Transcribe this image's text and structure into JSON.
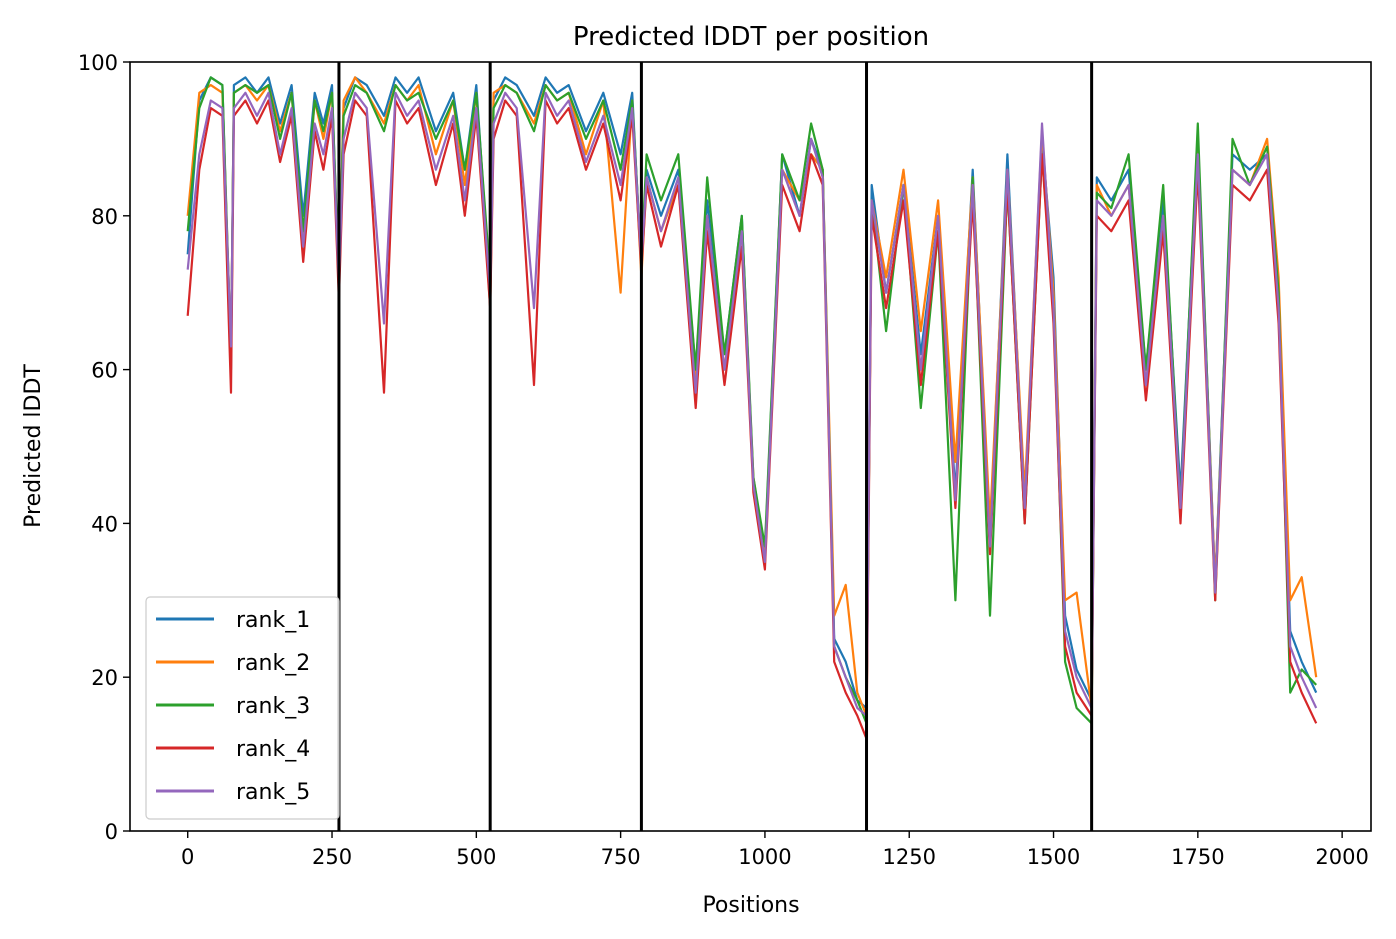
{
  "chart_data": {
    "type": "line",
    "title": "Predicted lDDT per position",
    "xlabel": "Positions",
    "ylabel": "Predicted lDDT",
    "xlim": [
      -100,
      2050
    ],
    "ylim": [
      0,
      100
    ],
    "xticks": [
      0,
      250,
      500,
      750,
      1000,
      1250,
      1500,
      1750,
      2000
    ],
    "yticks": [
      0,
      20,
      40,
      60,
      80,
      100
    ],
    "grid": false,
    "legend_position": "lower-left",
    "chain_boundaries": [
      262,
      524,
      786,
      1176,
      1566
    ],
    "boundary_color": "#000000",
    "series": [
      {
        "name": "rank_1",
        "color": "#1f77b4",
        "x": [
          0,
          20,
          40,
          60,
          75,
          80,
          100,
          120,
          140,
          160,
          180,
          200,
          220,
          235,
          250,
          262,
          270,
          290,
          310,
          340,
          360,
          380,
          400,
          430,
          460,
          480,
          500,
          524,
          530,
          550,
          570,
          600,
          620,
          640,
          660,
          690,
          720,
          750,
          770,
          786,
          795,
          820,
          850,
          880,
          900,
          930,
          960,
          980,
          1000,
          1030,
          1060,
          1080,
          1100,
          1120,
          1140,
          1160,
          1176,
          1185,
          1210,
          1240,
          1270,
          1300,
          1330,
          1360,
          1390,
          1420,
          1450,
          1480,
          1500,
          1520,
          1540,
          1566,
          1575,
          1600,
          1630,
          1660,
          1690,
          1720,
          1750,
          1780,
          1810,
          1840,
          1870,
          1890,
          1910,
          1930,
          1955
        ],
        "y": [
          75,
          95,
          98,
          97,
          60,
          97,
          98,
          96,
          98,
          92,
          97,
          80,
          96,
          92,
          97,
          70,
          94,
          98,
          97,
          93,
          98,
          96,
          98,
          91,
          96,
          86,
          97,
          70,
          95,
          98,
          97,
          93,
          98,
          96,
          97,
          91,
          96,
          88,
          96,
          73,
          86,
          80,
          86,
          60,
          82,
          62,
          80,
          45,
          36,
          88,
          80,
          90,
          86,
          25,
          22,
          17,
          16,
          84,
          70,
          84,
          62,
          80,
          44,
          86,
          38,
          88,
          42,
          90,
          72,
          28,
          21,
          17,
          85,
          82,
          86,
          60,
          82,
          44,
          90,
          32,
          88,
          86,
          88,
          70,
          26,
          22,
          18
        ]
      },
      {
        "name": "rank_2",
        "color": "#ff7f0e",
        "x": [
          0,
          20,
          40,
          60,
          75,
          80,
          100,
          120,
          140,
          160,
          180,
          200,
          220,
          235,
          250,
          262,
          270,
          290,
          310,
          340,
          360,
          380,
          400,
          430,
          460,
          480,
          500,
          524,
          530,
          550,
          570,
          600,
          620,
          640,
          660,
          690,
          720,
          750,
          770,
          786,
          795,
          820,
          850,
          880,
          900,
          930,
          960,
          980,
          1000,
          1030,
          1060,
          1080,
          1100,
          1120,
          1140,
          1160,
          1176,
          1185,
          1210,
          1240,
          1270,
          1300,
          1330,
          1360,
          1390,
          1420,
          1450,
          1480,
          1500,
          1520,
          1540,
          1566,
          1575,
          1600,
          1630,
          1660,
          1690,
          1720,
          1750,
          1780,
          1810,
          1840,
          1870,
          1890,
          1910,
          1930,
          1955
        ],
        "y": [
          80,
          96,
          97,
          96,
          62,
          96,
          97,
          95,
          97,
          91,
          96,
          76,
          95,
          90,
          96,
          70,
          95,
          98,
          96,
          92,
          97,
          95,
          97,
          88,
          95,
          84,
          96,
          68,
          96,
          97,
          96,
          92,
          97,
          95,
          96,
          88,
          95,
          70,
          95,
          72,
          85,
          78,
          84,
          58,
          80,
          60,
          78,
          46,
          36,
          86,
          82,
          88,
          86,
          28,
          32,
          18,
          15,
          82,
          72,
          86,
          65,
          82,
          48,
          85,
          40,
          86,
          44,
          91,
          70,
          30,
          31,
          16,
          84,
          80,
          84,
          58,
          80,
          42,
          89,
          32,
          86,
          84,
          90,
          72,
          30,
          33,
          20
        ]
      },
      {
        "name": "rank_3",
        "color": "#2ca02c",
        "x": [
          0,
          20,
          40,
          60,
          75,
          80,
          100,
          120,
          140,
          160,
          180,
          200,
          220,
          235,
          250,
          262,
          270,
          290,
          310,
          340,
          360,
          380,
          400,
          430,
          460,
          480,
          500,
          524,
          530,
          550,
          570,
          600,
          620,
          640,
          660,
          690,
          720,
          750,
          770,
          786,
          795,
          820,
          850,
          880,
          900,
          930,
          960,
          980,
          1000,
          1030,
          1060,
          1080,
          1100,
          1120,
          1140,
          1160,
          1176,
          1185,
          1210,
          1240,
          1270,
          1300,
          1330,
          1360,
          1390,
          1420,
          1450,
          1480,
          1500,
          1520,
          1540,
          1566,
          1575,
          1600,
          1630,
          1660,
          1690,
          1720,
          1750,
          1780,
          1810,
          1840,
          1870,
          1890,
          1910,
          1930,
          1955
        ],
        "y": [
          78,
          94,
          98,
          97,
          62,
          96,
          97,
          96,
          97,
          90,
          96,
          78,
          95,
          91,
          96,
          72,
          93,
          97,
          96,
          91,
          97,
          95,
          96,
          90,
          95,
          86,
          96,
          72,
          94,
          97,
          96,
          91,
          97,
          95,
          96,
          90,
          95,
          86,
          95,
          74,
          88,
          82,
          88,
          60,
          85,
          62,
          80,
          46,
          37,
          88,
          82,
          92,
          86,
          24,
          20,
          17,
          14,
          82,
          65,
          84,
          55,
          78,
          30,
          85,
          28,
          84,
          40,
          88,
          68,
          22,
          16,
          14,
          83,
          81,
          88,
          60,
          84,
          42,
          92,
          30,
          90,
          84,
          89,
          70,
          18,
          21,
          19
        ]
      },
      {
        "name": "rank_4",
        "color": "#d62728",
        "x": [
          0,
          20,
          40,
          60,
          75,
          80,
          100,
          120,
          140,
          160,
          180,
          200,
          220,
          235,
          250,
          262,
          270,
          290,
          310,
          340,
          360,
          380,
          400,
          430,
          460,
          480,
          500,
          524,
          530,
          550,
          570,
          600,
          620,
          640,
          660,
          690,
          720,
          750,
          770,
          786,
          795,
          820,
          850,
          880,
          900,
          930,
          960,
          980,
          1000,
          1030,
          1060,
          1080,
          1100,
          1120,
          1140,
          1160,
          1176,
          1185,
          1210,
          1240,
          1270,
          1300,
          1330,
          1360,
          1390,
          1420,
          1450,
          1480,
          1500,
          1520,
          1540,
          1566,
          1575,
          1600,
          1630,
          1660,
          1690,
          1720,
          1750,
          1780,
          1810,
          1840,
          1870,
          1890,
          1910,
          1930,
          1955
        ],
        "y": [
          67,
          86,
          94,
          93,
          57,
          93,
          95,
          92,
          95,
          87,
          93,
          74,
          91,
          86,
          93,
          69,
          88,
          95,
          93,
          57,
          95,
          92,
          94,
          84,
          92,
          80,
          93,
          68,
          90,
          95,
          93,
          58,
          95,
          92,
          94,
          86,
          92,
          82,
          93,
          73,
          84,
          76,
          84,
          55,
          78,
          58,
          76,
          44,
          34,
          84,
          78,
          88,
          84,
          22,
          18,
          15,
          12,
          80,
          68,
          82,
          58,
          78,
          42,
          82,
          36,
          84,
          40,
          88,
          66,
          24,
          18,
          15,
          80,
          78,
          82,
          56,
          78,
          40,
          86,
          30,
          84,
          82,
          86,
          66,
          22,
          18,
          14
        ]
      },
      {
        "name": "rank_5",
        "color": "#9467bd",
        "x": [
          0,
          20,
          40,
          60,
          75,
          80,
          100,
          120,
          140,
          160,
          180,
          200,
          220,
          235,
          250,
          262,
          270,
          290,
          310,
          340,
          360,
          380,
          400,
          430,
          460,
          480,
          500,
          524,
          530,
          550,
          570,
          600,
          620,
          640,
          660,
          690,
          720,
          750,
          770,
          786,
          795,
          820,
          850,
          880,
          900,
          930,
          960,
          980,
          1000,
          1030,
          1060,
          1080,
          1100,
          1120,
          1140,
          1160,
          1176,
          1185,
          1210,
          1240,
          1270,
          1300,
          1330,
          1360,
          1390,
          1420,
          1450,
          1480,
          1500,
          1520,
          1540,
          1566,
          1575,
          1600,
          1630,
          1660,
          1690,
          1720,
          1750,
          1780,
          1810,
          1840,
          1870,
          1890,
          1910,
          1930,
          1955
        ],
        "y": [
          73,
          88,
          95,
          94,
          63,
          94,
          96,
          93,
          96,
          88,
          94,
          76,
          92,
          88,
          94,
          71,
          90,
          96,
          94,
          66,
          96,
          93,
          95,
          86,
          93,
          82,
          94,
          70,
          92,
          96,
          94,
          68,
          96,
          93,
          95,
          87,
          93,
          84,
          94,
          74,
          85,
          78,
          85,
          57,
          80,
          60,
          78,
          45,
          35,
          86,
          80,
          90,
          85,
          24,
          20,
          16,
          15,
          82,
          70,
          84,
          60,
          80,
          43,
          84,
          37,
          86,
          42,
          92,
          68,
          26,
          20,
          16,
          82,
          80,
          84,
          58,
          80,
          42,
          88,
          31,
          86,
          84,
          88,
          68,
          24,
          20,
          16
        ]
      }
    ]
  }
}
